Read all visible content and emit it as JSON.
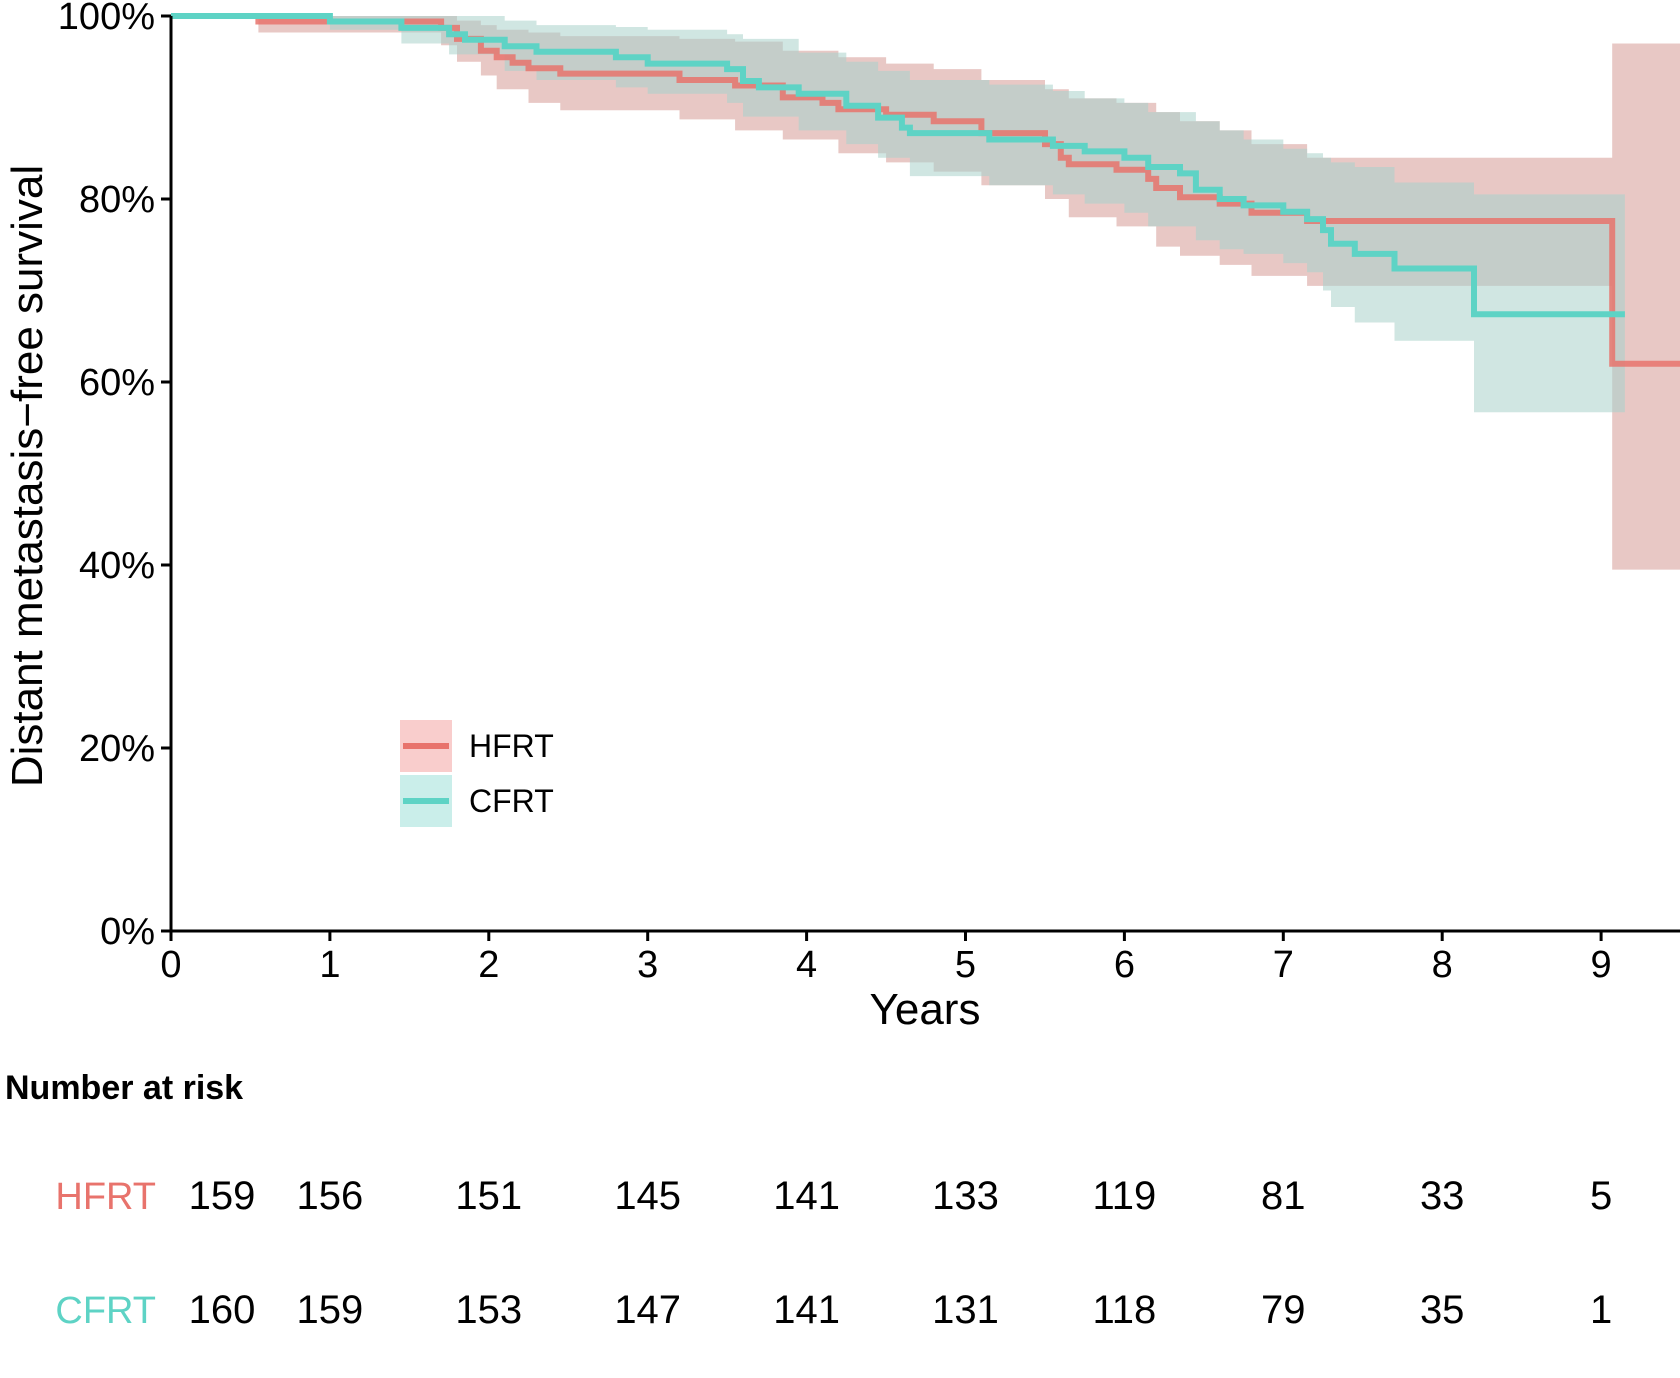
{
  "chart_data": {
    "type": "line",
    "subtype": "kaplan-meier",
    "title": "",
    "xlabel": "Years",
    "ylabel": "Distant metastasis−free survival",
    "xlim": [
      0,
      9.5
    ],
    "ylim": [
      0,
      1
    ],
    "x_ticks": [
      "0",
      "1",
      "2",
      "3",
      "4",
      "5",
      "6",
      "7",
      "8",
      "9"
    ],
    "y_ticks": [
      "0%",
      "20%",
      "40%",
      "60%",
      "80%",
      "100%"
    ],
    "legend_position": "bottom-left",
    "series": [
      {
        "name": "HFRT",
        "color": "#E8736C",
        "band_color": "#F8C8C6",
        "steps": [
          [
            0,
            1.0
          ],
          [
            0.55,
            0.994
          ],
          [
            1.7,
            0.987
          ],
          [
            1.8,
            0.975
          ],
          [
            1.95,
            0.962
          ],
          [
            2.05,
            0.955
          ],
          [
            2.15,
            0.949
          ],
          [
            2.25,
            0.943
          ],
          [
            2.45,
            0.937
          ],
          [
            3.1,
            0.937
          ],
          [
            3.2,
            0.93
          ],
          [
            3.55,
            0.924
          ],
          [
            3.85,
            0.911
          ],
          [
            4.1,
            0.905
          ],
          [
            4.2,
            0.898
          ],
          [
            4.5,
            0.892
          ],
          [
            4.8,
            0.885
          ],
          [
            5.1,
            0.872
          ],
          [
            5.5,
            0.86
          ],
          [
            5.6,
            0.845
          ],
          [
            5.65,
            0.838
          ],
          [
            5.95,
            0.832
          ],
          [
            6.15,
            0.822
          ],
          [
            6.2,
            0.812
          ],
          [
            6.35,
            0.802
          ],
          [
            6.6,
            0.795
          ],
          [
            6.8,
            0.785
          ],
          [
            7.15,
            0.776
          ],
          [
            9.07,
            0.62
          ],
          [
            9.5,
            0.62
          ]
        ],
        "ci": [
          [
            0,
            1.0,
            1.0
          ],
          [
            0.55,
            0.982,
            1.0
          ],
          [
            1.7,
            0.968,
            1.0
          ],
          [
            1.8,
            0.95,
            0.995
          ],
          [
            1.95,
            0.935,
            0.99
          ],
          [
            2.05,
            0.92,
            0.985
          ],
          [
            2.25,
            0.905,
            0.982
          ],
          [
            2.45,
            0.897,
            0.978
          ],
          [
            3.2,
            0.887,
            0.975
          ],
          [
            3.55,
            0.875,
            0.972
          ],
          [
            3.85,
            0.865,
            0.962
          ],
          [
            4.2,
            0.85,
            0.955
          ],
          [
            4.5,
            0.84,
            0.948
          ],
          [
            4.8,
            0.83,
            0.942
          ],
          [
            5.1,
            0.815,
            0.93
          ],
          [
            5.5,
            0.8,
            0.92
          ],
          [
            5.65,
            0.78,
            0.91
          ],
          [
            5.95,
            0.77,
            0.905
          ],
          [
            6.2,
            0.748,
            0.895
          ],
          [
            6.35,
            0.738,
            0.885
          ],
          [
            6.6,
            0.728,
            0.875
          ],
          [
            6.8,
            0.716,
            0.86
          ],
          [
            7.15,
            0.705,
            0.845
          ],
          [
            9.07,
            0.395,
            0.97
          ],
          [
            9.5,
            0.395,
            0.97
          ]
        ]
      },
      {
        "name": "CFRT",
        "color": "#5ED3C5",
        "band_color": "#C4ECE8",
        "steps": [
          [
            0,
            1.0
          ],
          [
            1.0,
            0.994
          ],
          [
            1.45,
            0.987
          ],
          [
            1.75,
            0.98
          ],
          [
            1.85,
            0.974
          ],
          [
            2.1,
            0.967
          ],
          [
            2.3,
            0.961
          ],
          [
            2.8,
            0.955
          ],
          [
            3.0,
            0.948
          ],
          [
            3.5,
            0.942
          ],
          [
            3.6,
            0.929
          ],
          [
            3.7,
            0.922
          ],
          [
            3.95,
            0.915
          ],
          [
            4.25,
            0.902
          ],
          [
            4.45,
            0.889
          ],
          [
            4.6,
            0.878
          ],
          [
            4.65,
            0.872
          ],
          [
            5.15,
            0.865
          ],
          [
            5.55,
            0.858
          ],
          [
            5.75,
            0.852
          ],
          [
            6.0,
            0.845
          ],
          [
            6.15,
            0.835
          ],
          [
            6.35,
            0.828
          ],
          [
            6.45,
            0.81
          ],
          [
            6.6,
            0.8
          ],
          [
            6.75,
            0.793
          ],
          [
            7.0,
            0.786
          ],
          [
            7.15,
            0.778
          ],
          [
            7.25,
            0.766
          ],
          [
            7.3,
            0.751
          ],
          [
            7.45,
            0.74
          ],
          [
            7.7,
            0.724
          ],
          [
            8.2,
            0.674
          ],
          [
            9.15,
            0.674
          ]
        ],
        "ci": [
          [
            0,
            1.0,
            1.0
          ],
          [
            1.0,
            0.985,
            1.0
          ],
          [
            1.45,
            0.97,
            1.0
          ],
          [
            1.75,
            0.958,
            1.0
          ],
          [
            2.1,
            0.94,
            0.995
          ],
          [
            2.3,
            0.93,
            0.99
          ],
          [
            2.8,
            0.922,
            0.988
          ],
          [
            3.0,
            0.915,
            0.985
          ],
          [
            3.5,
            0.905,
            0.98
          ],
          [
            3.6,
            0.89,
            0.975
          ],
          [
            3.95,
            0.875,
            0.96
          ],
          [
            4.25,
            0.86,
            0.95
          ],
          [
            4.45,
            0.845,
            0.94
          ],
          [
            4.65,
            0.825,
            0.93
          ],
          [
            5.15,
            0.815,
            0.925
          ],
          [
            5.55,
            0.805,
            0.918
          ],
          [
            5.75,
            0.795,
            0.91
          ],
          [
            6.0,
            0.785,
            0.905
          ],
          [
            6.15,
            0.77,
            0.895
          ],
          [
            6.45,
            0.755,
            0.885
          ],
          [
            6.6,
            0.745,
            0.875
          ],
          [
            6.75,
            0.74,
            0.865
          ],
          [
            7.0,
            0.73,
            0.855
          ],
          [
            7.15,
            0.72,
            0.85
          ],
          [
            7.25,
            0.7,
            0.845
          ],
          [
            7.3,
            0.682,
            0.84
          ],
          [
            7.45,
            0.665,
            0.835
          ],
          [
            7.7,
            0.645,
            0.818
          ],
          [
            8.2,
            0.567,
            0.805
          ],
          [
            9.15,
            0.567,
            0.805
          ]
        ]
      }
    ]
  },
  "risk_table": {
    "title": "Number at risk",
    "times": [
      0,
      1,
      2,
      3,
      4,
      5,
      6,
      7,
      8,
      9
    ],
    "rows": [
      {
        "name": "HFRT",
        "color": "#E8736C",
        "values": [
          "159",
          "156",
          "151",
          "145",
          "141",
          "133",
          "119",
          "81",
          "33",
          "5"
        ]
      },
      {
        "name": "CFRT",
        "color": "#5ED3C5",
        "values": [
          "160",
          "159",
          "153",
          "147",
          "141",
          "131",
          "118",
          "79",
          "35",
          "1"
        ]
      }
    ]
  }
}
